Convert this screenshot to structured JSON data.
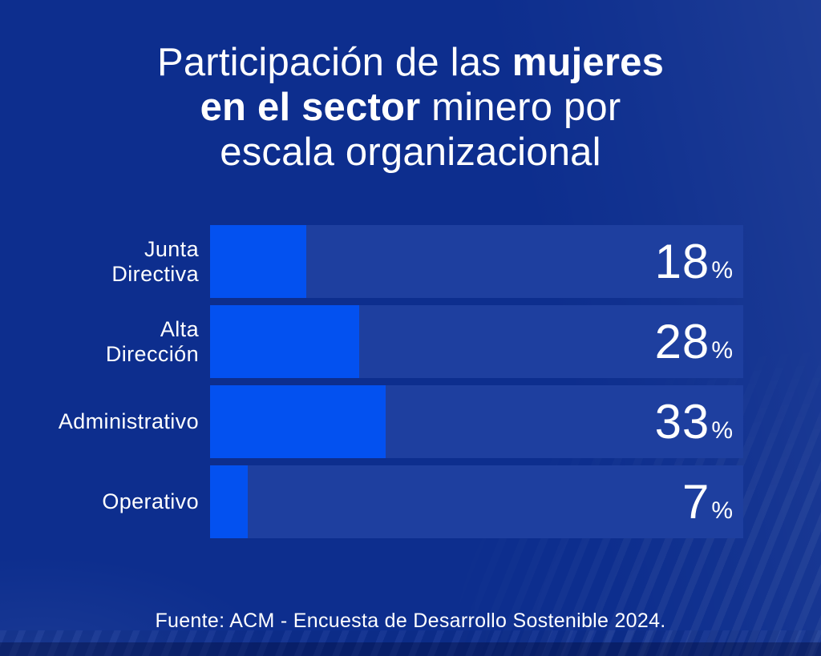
{
  "page": {
    "background_color": "#0d2e8e",
    "bar_track_color": "#1e3f9f",
    "bar_fill_color": "#0351f0",
    "text_color": "#ffffff"
  },
  "title": {
    "line1_regular": "Participación de las ",
    "line1_bold": "mujeres",
    "line2_bold": "en el sector",
    "line2_regular": " minero por",
    "line3": "escala organizacional"
  },
  "chart_data": {
    "type": "bar",
    "orientation": "horizontal",
    "title": "Participación de las mujeres en el sector minero por escala organizacional",
    "categories": [
      "Junta Directiva",
      "Alta Dirección",
      "Administrativo",
      "Operativo"
    ],
    "values": [
      18,
      28,
      33,
      7
    ],
    "unit": "%",
    "xlim": [
      0,
      100
    ],
    "grid": false,
    "legend": false,
    "source": "Fuente: ACM - Encuesta de Desarrollo Sostenible 2024."
  },
  "bars": [
    {
      "label_lines": [
        "Junta",
        "Directiva"
      ],
      "value": 18,
      "value_label": "18",
      "unit": "%"
    },
    {
      "label_lines": [
        "Alta",
        "Dirección"
      ],
      "value": 28,
      "value_label": "28",
      "unit": "%"
    },
    {
      "label_lines": [
        "Administrativo"
      ],
      "value": 33,
      "value_label": "33",
      "unit": "%"
    },
    {
      "label_lines": [
        "Operativo"
      ],
      "value": 7,
      "value_label": "7",
      "unit": "%"
    }
  ],
  "footer": {
    "source": "Fuente: ACM - Encuesta de Desarrollo Sostenible 2024."
  }
}
